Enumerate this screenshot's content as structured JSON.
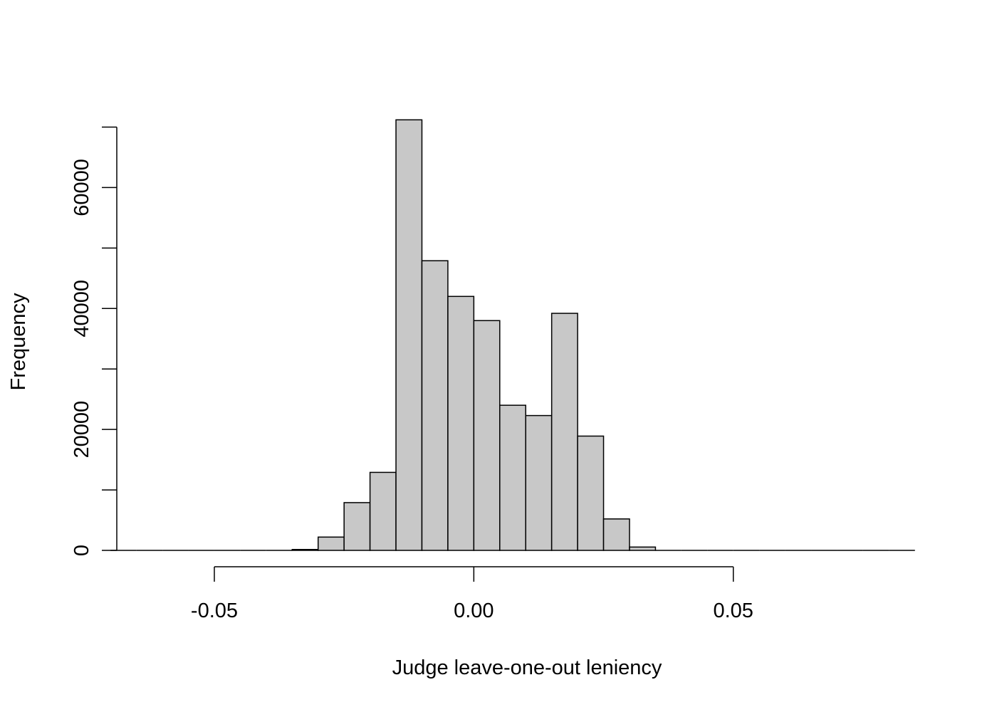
{
  "chart_data": {
    "type": "histogram",
    "xlabel": "Judge leave-one-out leniency",
    "ylabel": "Frequency",
    "bar_color": "#c8c8c8",
    "outline_color": "#000000",
    "bin_width": 0.005,
    "xlim": [
      -0.0725,
      0.0875
    ],
    "ylim": [
      0,
      71000
    ],
    "x_ticks": [
      -0.05,
      0.0,
      0.05
    ],
    "x_tick_labels": [
      "-0.05",
      "0.00",
      "0.05"
    ],
    "y_ticks": [
      0,
      10000,
      20000,
      30000,
      40000,
      50000,
      60000,
      70000
    ],
    "y_tick_labels": [
      "0",
      "",
      "20000",
      "",
      "40000",
      "",
      "60000",
      ""
    ],
    "bins": [
      {
        "start": -0.07,
        "end": -0.065,
        "count": 0
      },
      {
        "start": -0.065,
        "end": -0.06,
        "count": 0
      },
      {
        "start": -0.06,
        "end": -0.055,
        "count": 0
      },
      {
        "start": -0.055,
        "end": -0.05,
        "count": 0
      },
      {
        "start": -0.05,
        "end": -0.045,
        "count": 0
      },
      {
        "start": -0.045,
        "end": -0.04,
        "count": 0
      },
      {
        "start": -0.04,
        "end": -0.035,
        "count": 0
      },
      {
        "start": -0.035,
        "end": -0.03,
        "count": 150
      },
      {
        "start": -0.03,
        "end": -0.025,
        "count": 2200
      },
      {
        "start": -0.025,
        "end": -0.02,
        "count": 7900
      },
      {
        "start": -0.02,
        "end": -0.015,
        "count": 12900
      },
      {
        "start": -0.015,
        "end": -0.01,
        "count": 71200
      },
      {
        "start": -0.01,
        "end": -0.005,
        "count": 47900
      },
      {
        "start": -0.005,
        "end": 0.0,
        "count": 42000
      },
      {
        "start": 0.0,
        "end": 0.005,
        "count": 38000
      },
      {
        "start": 0.005,
        "end": 0.01,
        "count": 24000
      },
      {
        "start": 0.01,
        "end": 0.015,
        "count": 22300
      },
      {
        "start": 0.015,
        "end": 0.02,
        "count": 39200
      },
      {
        "start": 0.02,
        "end": 0.025,
        "count": 18900
      },
      {
        "start": 0.025,
        "end": 0.03,
        "count": 5200
      },
      {
        "start": 0.03,
        "end": 0.035,
        "count": 550
      },
      {
        "start": 0.035,
        "end": 0.04,
        "count": 0
      },
      {
        "start": 0.04,
        "end": 0.045,
        "count": 0
      },
      {
        "start": 0.045,
        "end": 0.05,
        "count": 0
      },
      {
        "start": 0.05,
        "end": 0.055,
        "count": 0
      },
      {
        "start": 0.055,
        "end": 0.06,
        "count": 0
      },
      {
        "start": 0.06,
        "end": 0.065,
        "count": 0
      },
      {
        "start": 0.065,
        "end": 0.07,
        "count": 0
      },
      {
        "start": 0.07,
        "end": 0.075,
        "count": 0
      },
      {
        "start": 0.075,
        "end": 0.08,
        "count": 0
      },
      {
        "start": 0.08,
        "end": 0.085,
        "count": 0
      }
    ],
    "grid": false,
    "legend": "none"
  }
}
